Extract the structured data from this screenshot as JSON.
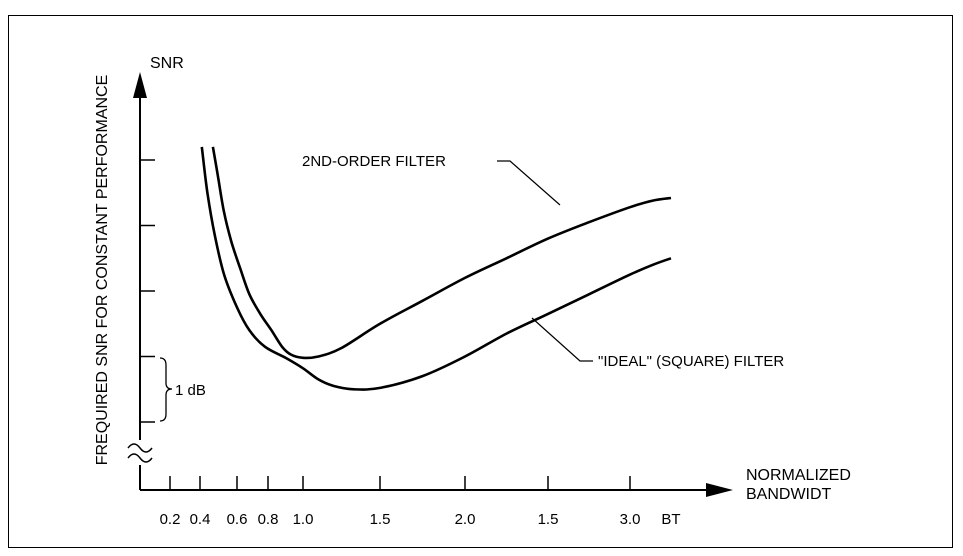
{
  "chart_data": {
    "type": "line",
    "ylabel": "FREQUIRED SNR FOR CONSTANT PERFORMANCE",
    "y_axis_title": "SNR",
    "xlabel": "NORMALIZED BANDWIDT",
    "x_axis_title_lines": [
      "NORMALIZED",
      "BANDWIDT"
    ],
    "x_tick_labels": [
      "0.2",
      "0.4",
      "0.6",
      "0.8",
      "1.0",
      "1.5",
      "2.0",
      "1.5",
      "3.0",
      "BT"
    ],
    "scale_annotation": "1 dB",
    "y_axis_break": true,
    "grid": false,
    "series": [
      {
        "name": "2ND-ORDER FILTER",
        "points": [
          [
            0.47,
            4.2
          ],
          [
            0.5,
            3.7
          ],
          [
            0.53,
            3.2
          ],
          [
            0.57,
            2.75
          ],
          [
            0.62,
            2.35
          ],
          [
            0.68,
            1.95
          ],
          [
            0.75,
            1.65
          ],
          [
            0.82,
            1.4
          ],
          [
            0.88,
            1.15
          ],
          [
            0.93,
            1.03
          ],
          [
            1.0,
            0.98
          ],
          [
            1.1,
            1.0
          ],
          [
            1.25,
            1.13
          ],
          [
            1.5,
            1.5
          ],
          [
            1.75,
            1.85
          ],
          [
            2.0,
            2.2
          ],
          [
            2.25,
            2.5
          ],
          [
            2.5,
            2.8
          ],
          [
            2.75,
            3.05
          ],
          [
            3.0,
            3.28
          ],
          [
            3.15,
            3.38
          ],
          [
            3.27,
            3.42
          ]
        ]
      },
      {
        "name": "\"IDEAL\" (SQUARE) FILTER",
        "points": [
          [
            0.41,
            4.2
          ],
          [
            0.44,
            3.5
          ],
          [
            0.48,
            2.85
          ],
          [
            0.53,
            2.25
          ],
          [
            0.6,
            1.75
          ],
          [
            0.68,
            1.4
          ],
          [
            0.78,
            1.15
          ],
          [
            0.9,
            0.98
          ],
          [
            1.0,
            0.82
          ],
          [
            1.1,
            0.65
          ],
          [
            1.2,
            0.55
          ],
          [
            1.33,
            0.5
          ],
          [
            1.5,
            0.52
          ],
          [
            1.75,
            0.7
          ],
          [
            2.0,
            1.0
          ],
          [
            2.25,
            1.35
          ],
          [
            2.5,
            1.65
          ],
          [
            2.75,
            1.95
          ],
          [
            3.0,
            2.25
          ],
          [
            3.15,
            2.4
          ],
          [
            3.27,
            2.5
          ]
        ]
      }
    ]
  }
}
